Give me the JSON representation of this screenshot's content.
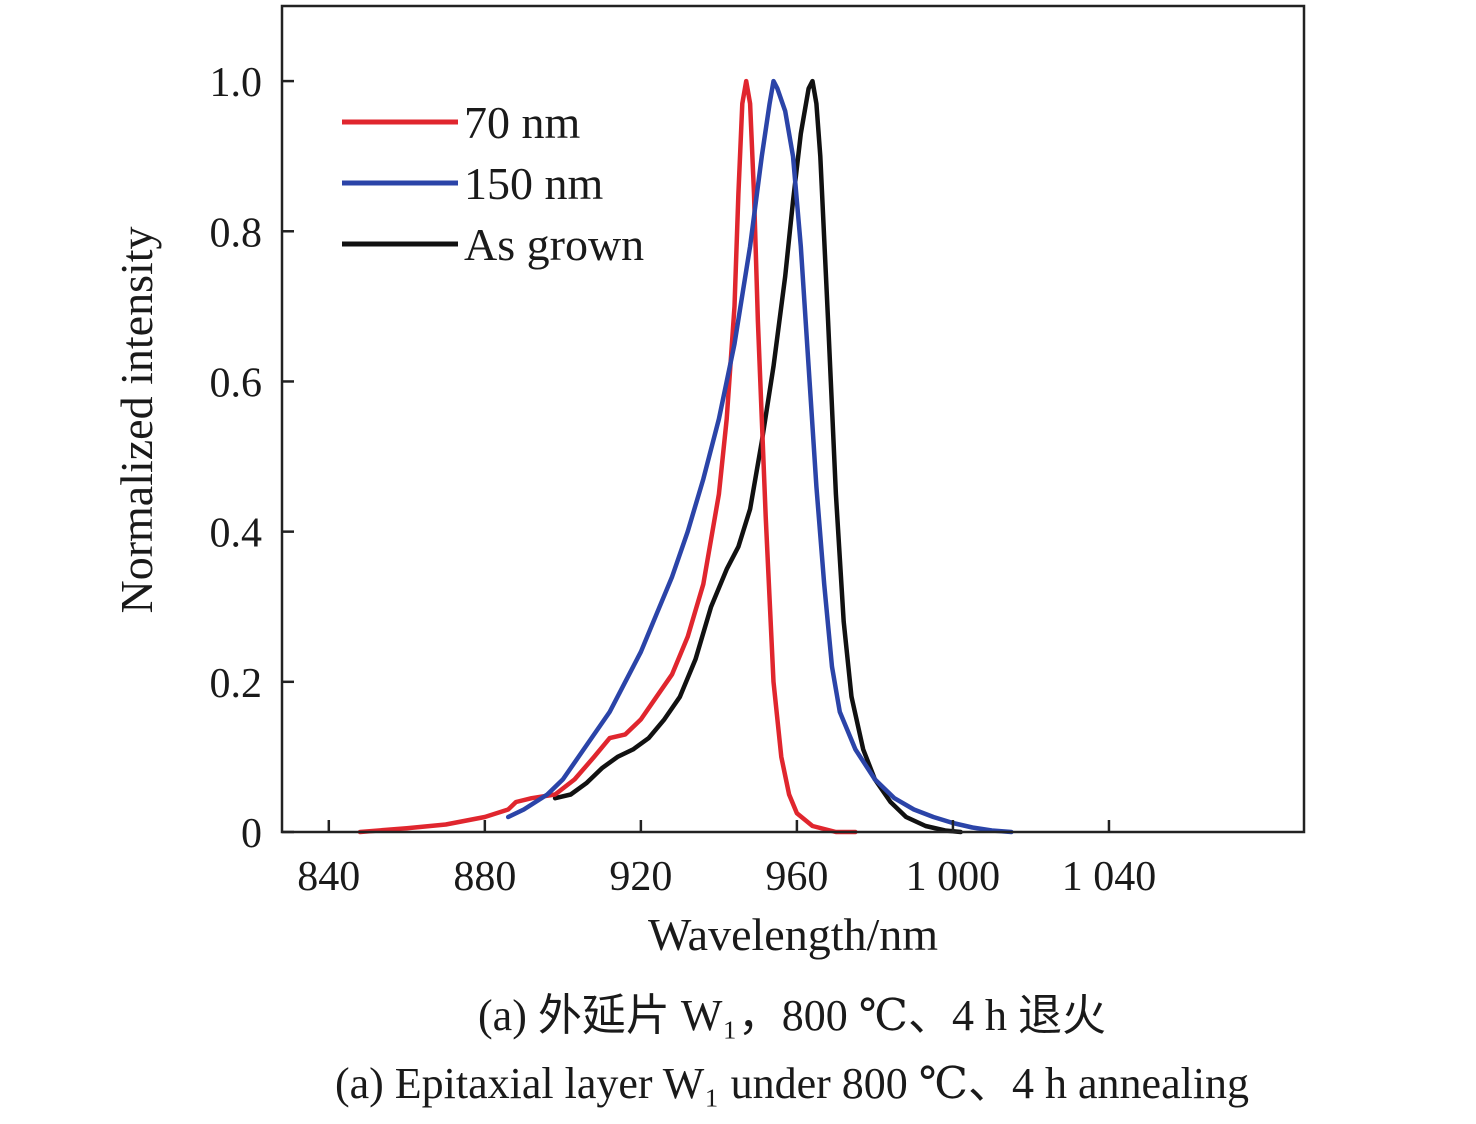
{
  "chart_data": {
    "type": "line",
    "title": "",
    "xlabel": "Wavelength/nm",
    "ylabel": "Normalized intensity",
    "xlim": [
      828,
      1090
    ],
    "ylim": [
      0,
      1.1
    ],
    "x_ticks": [
      840,
      880,
      920,
      960,
      1000,
      1040
    ],
    "x_tick_labels": [
      "840",
      "880",
      "920",
      "960",
      "1 000",
      "1 040"
    ],
    "y_ticks": [
      0,
      0.2,
      0.4,
      0.6,
      0.8,
      1.0
    ],
    "y_tick_labels": [
      "0",
      "0.2",
      "0.4",
      "0.6",
      "0.8",
      "1.0"
    ],
    "grid": false,
    "legend_position": "top-left",
    "series": [
      {
        "name": "70 nm",
        "color": "#e0262e",
        "points": [
          [
            848,
            0.0
          ],
          [
            860,
            0.005
          ],
          [
            870,
            0.01
          ],
          [
            880,
            0.02
          ],
          [
            886,
            0.03
          ],
          [
            888,
            0.04
          ],
          [
            892,
            0.045
          ],
          [
            898,
            0.05
          ],
          [
            903,
            0.07
          ],
          [
            908,
            0.1
          ],
          [
            912,
            0.125
          ],
          [
            916,
            0.13
          ],
          [
            920,
            0.15
          ],
          [
            924,
            0.18
          ],
          [
            928,
            0.21
          ],
          [
            932,
            0.26
          ],
          [
            936,
            0.33
          ],
          [
            940,
            0.45
          ],
          [
            942,
            0.55
          ],
          [
            944,
            0.7
          ],
          [
            945,
            0.85
          ],
          [
            946,
            0.97
          ],
          [
            947,
            1.0
          ],
          [
            948,
            0.97
          ],
          [
            949,
            0.85
          ],
          [
            950,
            0.68
          ],
          [
            952,
            0.42
          ],
          [
            954,
            0.2
          ],
          [
            956,
            0.1
          ],
          [
            958,
            0.05
          ],
          [
            960,
            0.025
          ],
          [
            964,
            0.008
          ],
          [
            970,
            0.0
          ],
          [
            975,
            0.0
          ]
        ]
      },
      {
        "name": "150 nm",
        "color": "#2b44a8",
        "points": [
          [
            886,
            0.02
          ],
          [
            890,
            0.03
          ],
          [
            896,
            0.05
          ],
          [
            900,
            0.07
          ],
          [
            904,
            0.1
          ],
          [
            908,
            0.13
          ],
          [
            912,
            0.16
          ],
          [
            916,
            0.2
          ],
          [
            920,
            0.24
          ],
          [
            924,
            0.29
          ],
          [
            928,
            0.34
          ],
          [
            932,
            0.4
          ],
          [
            936,
            0.47
          ],
          [
            940,
            0.55
          ],
          [
            944,
            0.65
          ],
          [
            948,
            0.78
          ],
          [
            951,
            0.9
          ],
          [
            953,
            0.97
          ],
          [
            954,
            1.0
          ],
          [
            955,
            0.99
          ],
          [
            957,
            0.96
          ],
          [
            959,
            0.9
          ],
          [
            961,
            0.78
          ],
          [
            963,
            0.62
          ],
          [
            965,
            0.46
          ],
          [
            967,
            0.33
          ],
          [
            969,
            0.22
          ],
          [
            971,
            0.16
          ],
          [
            975,
            0.11
          ],
          [
            980,
            0.07
          ],
          [
            985,
            0.045
          ],
          [
            990,
            0.03
          ],
          [
            995,
            0.02
          ],
          [
            1000,
            0.012
          ],
          [
            1005,
            0.006
          ],
          [
            1010,
            0.002
          ],
          [
            1015,
            0.0
          ]
        ]
      },
      {
        "name": "As grown",
        "color": "#111111",
        "points": [
          [
            898,
            0.045
          ],
          [
            902,
            0.05
          ],
          [
            906,
            0.065
          ],
          [
            910,
            0.085
          ],
          [
            914,
            0.1
          ],
          [
            918,
            0.11
          ],
          [
            922,
            0.125
          ],
          [
            926,
            0.15
          ],
          [
            930,
            0.18
          ],
          [
            934,
            0.23
          ],
          [
            938,
            0.3
          ],
          [
            942,
            0.35
          ],
          [
            945,
            0.38
          ],
          [
            948,
            0.43
          ],
          [
            951,
            0.52
          ],
          [
            954,
            0.62
          ],
          [
            957,
            0.74
          ],
          [
            959,
            0.84
          ],
          [
            961,
            0.93
          ],
          [
            963,
            0.99
          ],
          [
            964,
            1.0
          ],
          [
            965,
            0.97
          ],
          [
            966,
            0.9
          ],
          [
            968,
            0.68
          ],
          [
            970,
            0.45
          ],
          [
            972,
            0.28
          ],
          [
            974,
            0.18
          ],
          [
            977,
            0.11
          ],
          [
            980,
            0.07
          ],
          [
            984,
            0.04
          ],
          [
            988,
            0.02
          ],
          [
            993,
            0.008
          ],
          [
            998,
            0.002
          ],
          [
            1002,
            0.0
          ]
        ]
      }
    ]
  },
  "captions": {
    "chinese": "(a) 外延片 W₁，800 ℃、4 h 退火",
    "english": "(a) Epitaxial layer W₁ under 800 ℃、4 h annealing"
  }
}
